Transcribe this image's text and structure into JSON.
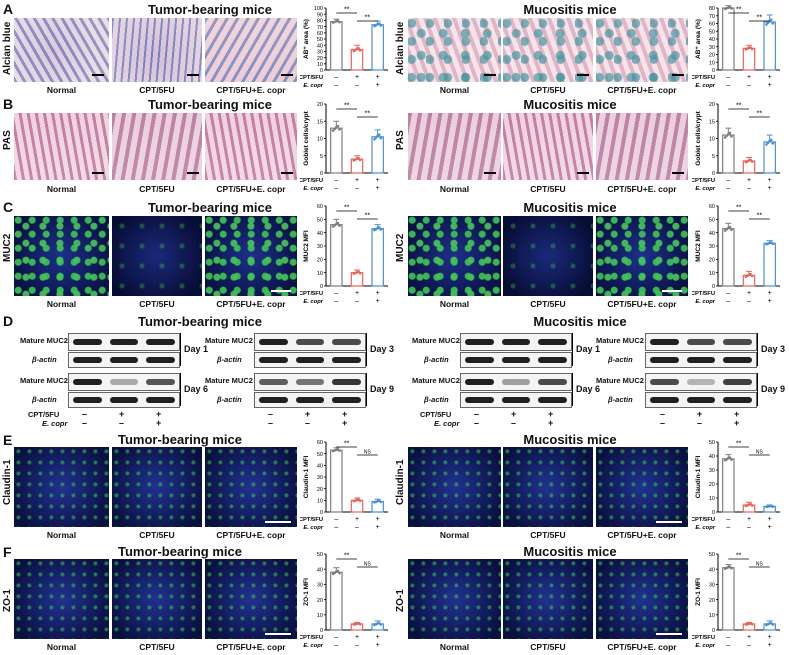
{
  "panels": {
    "A": {
      "letter": "A",
      "stain": "Alcian blue"
    },
    "B": {
      "letter": "B",
      "stain": "PAS"
    },
    "C": {
      "letter": "C",
      "stain": "MUC2"
    },
    "D": {
      "letter": "D"
    },
    "E": {
      "letter": "E",
      "stain": "Claudin-1"
    },
    "F": {
      "letter": "F",
      "stain": "ZO-1"
    }
  },
  "groups": {
    "tumor": "Tumor-bearing mice",
    "mucositis": "Mucositis mice"
  },
  "image_captions": [
    "Normal",
    "CPT/5FU",
    "CPT/5FU+E. copr"
  ],
  "treatment_rows": {
    "cpt": "CPT/5FU",
    "ecopr": "E. copr"
  },
  "treatment_signs": {
    "cpt": [
      "–",
      "+",
      "+"
    ],
    "ecopr": [
      "–",
      "–",
      "+"
    ]
  },
  "sig": {
    "double": "**",
    "ns": "NS"
  },
  "blot": {
    "mature": "Mature MUC2",
    "actin": "β-actin",
    "days": [
      "Day 1",
      "Day 3",
      "Day 6",
      "Day 9"
    ]
  },
  "colors": {
    "normal": "#7f7f7f",
    "cpt": "#e8645a",
    "ecopr": "#4a8fd3"
  },
  "chart_data": [
    {
      "id": "A-tumor",
      "type": "bar",
      "ylabel": "AB⁺ area (%)",
      "ylim": [
        0,
        100
      ],
      "yticks": [
        0,
        10,
        20,
        30,
        40,
        50,
        60,
        70,
        80,
        90,
        100
      ],
      "values": [
        78,
        33,
        73
      ],
      "errors": [
        4,
        7,
        6
      ],
      "sig": [
        [
          "**",
          0,
          1
        ],
        [
          "**",
          1,
          2
        ]
      ]
    },
    {
      "id": "A-muc",
      "type": "bar",
      "ylabel": "AB⁺ area (%)",
      "ylim": [
        0,
        80
      ],
      "yticks": [
        0,
        10,
        20,
        30,
        40,
        50,
        60,
        70,
        80
      ],
      "values": [
        80,
        28,
        62
      ],
      "errors": [
        3,
        4,
        9
      ],
      "sig": [
        [
          "**",
          0,
          1
        ],
        [
          "**",
          1,
          2
        ]
      ]
    },
    {
      "id": "B-tumor",
      "type": "bar",
      "ylabel": "Goblet cells/crypt",
      "ylim": [
        0,
        20
      ],
      "yticks": [
        0,
        5,
        10,
        15,
        20
      ],
      "values": [
        13,
        4,
        10.5
      ],
      "errors": [
        2,
        1,
        2
      ],
      "sig": [
        [
          "**",
          0,
          1
        ],
        [
          "**",
          1,
          2
        ]
      ]
    },
    {
      "id": "B-muc",
      "type": "bar",
      "ylabel": "Goblet cells/crypt",
      "ylim": [
        0,
        20
      ],
      "yticks": [
        0,
        5,
        10,
        15,
        20
      ],
      "values": [
        11,
        3.5,
        9
      ],
      "errors": [
        2,
        1,
        2
      ],
      "sig": [
        [
          "**",
          0,
          1
        ],
        [
          "**",
          1,
          2
        ]
      ]
    },
    {
      "id": "C-tumor",
      "type": "bar",
      "ylabel": "MUC2 MFI",
      "ylim": [
        0,
        60
      ],
      "yticks": [
        0,
        10,
        20,
        30,
        40,
        50,
        60
      ],
      "values": [
        46,
        10,
        43
      ],
      "errors": [
        4,
        2,
        3
      ],
      "sig": [
        [
          "**",
          0,
          1
        ],
        [
          "**",
          1,
          2
        ]
      ]
    },
    {
      "id": "C-muc",
      "type": "bar",
      "ylabel": "MUC2 MFI",
      "ylim": [
        0,
        60
      ],
      "yticks": [
        0,
        10,
        20,
        30,
        40,
        50,
        60
      ],
      "values": [
        43,
        8,
        32
      ],
      "errors": [
        4,
        3,
        2
      ],
      "sig": [
        [
          "**",
          0,
          1
        ],
        [
          "**",
          1,
          2
        ]
      ]
    },
    {
      "id": "E-tumor",
      "type": "bar",
      "ylabel": "Claudin-1 MFI",
      "ylim": [
        0,
        60
      ],
      "yticks": [
        0,
        10,
        20,
        30,
        40,
        50,
        60
      ],
      "values": [
        53,
        10,
        9
      ],
      "errors": [
        2,
        2,
        2
      ],
      "sig": [
        [
          "**",
          0,
          1
        ],
        [
          "NS",
          1,
          2
        ]
      ]
    },
    {
      "id": "E-muc",
      "type": "bar",
      "ylabel": "Claudin-1 MFI",
      "ylim": [
        0,
        50
      ],
      "yticks": [
        0,
        10,
        20,
        30,
        40,
        50
      ],
      "values": [
        38,
        5,
        4
      ],
      "errors": [
        3,
        2,
        1
      ],
      "sig": [
        [
          "**",
          0,
          1
        ],
        [
          "NS",
          1,
          2
        ]
      ]
    },
    {
      "id": "F-tumor",
      "type": "bar",
      "ylabel": "ZO-1 MFI",
      "ylim": [
        0,
        50
      ],
      "yticks": [
        0,
        10,
        20,
        30,
        40,
        50
      ],
      "values": [
        38,
        4,
        4
      ],
      "errors": [
        3,
        1,
        2
      ],
      "sig": [
        [
          "**",
          0,
          1
        ],
        [
          "NS",
          1,
          2
        ]
      ]
    },
    {
      "id": "F-muc",
      "type": "bar",
      "ylabel": "ZO-1 MFI",
      "ylim": [
        0,
        50
      ],
      "yticks": [
        0,
        10,
        20,
        30,
        40,
        50
      ],
      "values": [
        41,
        4,
        4
      ],
      "errors": [
        2,
        1,
        2
      ],
      "sig": [
        [
          "**",
          0,
          1
        ],
        [
          "NS",
          1,
          2
        ]
      ]
    }
  ]
}
